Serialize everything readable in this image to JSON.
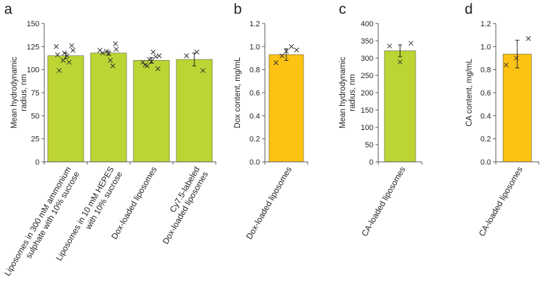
{
  "colors": {
    "green": "#bdd534",
    "orange": "#fdc314",
    "axis": "#555555",
    "text": "#222222"
  },
  "chart_data": [
    {
      "panel": "a",
      "type": "bar",
      "ylabel": [
        "Mean hydrodynamic",
        "radius, nm"
      ],
      "ylim": [
        0,
        150
      ],
      "yticks": [
        0,
        25,
        50,
        75,
        100,
        125,
        150
      ],
      "categories": [
        [
          "Liposomes in 300 mM ammonium",
          "sulphate with 10% sucrose"
        ],
        [
          "Liposomes in 10 mM HEPES",
          "with 10% sucrose"
        ],
        [
          "Dox-loaded liposomes"
        ],
        [
          "Cy7.5-labeled",
          "Dox-loaded liposomes"
        ]
      ],
      "values": [
        115,
        118,
        110,
        111
      ],
      "errors": [
        3,
        2,
        3,
        7
      ],
      "color": "green",
      "points": [
        [
          [
            -0.22,
            125
          ],
          [
            -0.19,
            116
          ],
          [
            -0.15,
            99
          ],
          [
            -0.06,
            110
          ],
          [
            -0.03,
            118
          ],
          [
            0.03,
            115
          ],
          [
            0.08,
            108
          ],
          [
            0.14,
            126
          ],
          [
            0.17,
            121
          ]
        ],
        [
          [
            -0.2,
            121
          ],
          [
            -0.14,
            118
          ],
          [
            -0.05,
            120
          ],
          [
            0.0,
            117
          ],
          [
            0.04,
            110
          ],
          [
            0.1,
            104
          ],
          [
            0.16,
            128
          ],
          [
            0.18,
            122
          ]
        ],
        [
          [
            -0.2,
            108
          ],
          [
            -0.15,
            105
          ],
          [
            -0.1,
            104
          ],
          [
            -0.05,
            111
          ],
          [
            0.0,
            109
          ],
          [
            0.04,
            119
          ],
          [
            0.1,
            114
          ],
          [
            0.15,
            101
          ],
          [
            0.18,
            115
          ]
        ],
        [
          [
            -0.18,
            115
          ],
          [
            0.06,
            119
          ],
          [
            0.2,
            99
          ]
        ]
      ]
    },
    {
      "panel": "b",
      "type": "bar",
      "ylabel": [
        "Dox content, mg/mL"
      ],
      "ylim": [
        0,
        1.2
      ],
      "yticks": [
        0.0,
        0.2,
        0.4,
        0.6,
        0.8,
        1.0,
        1.2
      ],
      "categories": [
        [
          "Dox-loaded liposomes"
        ]
      ],
      "values": [
        0.93
      ],
      "errors": [
        0.05
      ],
      "color": "orange",
      "points": [
        [
          [
            -0.24,
            0.86
          ],
          [
            -0.1,
            0.92
          ],
          [
            0.0,
            0.96
          ],
          [
            0.12,
            1.0
          ],
          [
            0.24,
            0.97
          ]
        ]
      ]
    },
    {
      "panel": "c",
      "type": "bar",
      "ylabel": [
        "Mean hydrodynamic",
        "radius, nm"
      ],
      "ylim": [
        0,
        400
      ],
      "yticks": [
        0,
        50,
        100,
        150,
        200,
        250,
        300,
        350,
        400
      ],
      "categories": [
        [
          "CA-loaded liposomes"
        ]
      ],
      "values": [
        321
      ],
      "errors": [
        17
      ],
      "color": "green",
      "points": [
        [
          [
            -0.24,
            335
          ],
          [
            0.0,
            289
          ],
          [
            0.25,
            343
          ]
        ]
      ]
    },
    {
      "panel": "d",
      "type": "bar",
      "ylabel": [
        "CA content, mg/mL"
      ],
      "ylim": [
        0,
        1.2
      ],
      "yticks": [
        0.0,
        0.2,
        0.4,
        0.6,
        0.8,
        1.0,
        1.2
      ],
      "categories": [
        [
          "CA-loaded liposomes"
        ]
      ],
      "values": [
        0.935
      ],
      "errors": [
        0.12
      ],
      "color": "orange",
      "points": [
        [
          [
            -0.26,
            0.84
          ],
          [
            -0.02,
            0.9
          ],
          [
            0.26,
            1.07
          ]
        ]
      ]
    }
  ]
}
